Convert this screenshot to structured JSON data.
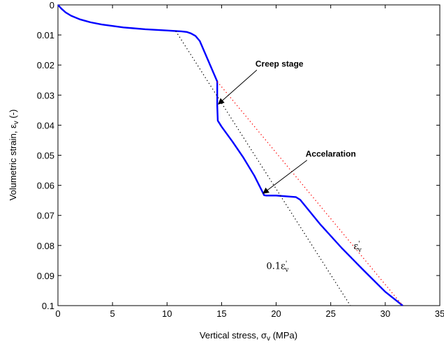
{
  "chart_data": {
    "type": "line",
    "title": "",
    "xlabel": "Vertical stress, σ",
    "xlabel_sub": "v",
    "xlabel_unit": " (MPa)",
    "ylabel": "Volumetric strain, ε",
    "ylabel_sub": "v",
    "ylabel_unit": " (-)",
    "xlim": [
      0,
      35
    ],
    "ylim": [
      0,
      0.1
    ],
    "y_reversed": true,
    "grid": false,
    "xticks": [
      0,
      5,
      10,
      15,
      20,
      25,
      30,
      35
    ],
    "xtick_labels": [
      "0",
      "5",
      "10",
      "15",
      "20",
      "25",
      "30",
      "35"
    ],
    "yticks": [
      0,
      0.01,
      0.02,
      0.03,
      0.04,
      0.05,
      0.06,
      0.07,
      0.08,
      0.09,
      0.1
    ],
    "ytick_labels": [
      "0",
      "0.01",
      "0.02",
      "0.03",
      "0.04",
      "0.05",
      "0.06",
      "0.07",
      "0.08",
      "0.09",
      "0.1"
    ],
    "series": [
      {
        "style": "solid",
        "color": "#0000ff",
        "x": [
          0,
          0.3,
          0.7,
          1.2,
          2,
          3,
          4,
          5,
          6,
          7,
          8,
          9,
          10,
          10.8,
          11.3,
          11.8,
          12.2,
          12.6,
          13,
          14.6,
          14.6,
          14.65,
          15,
          16,
          17,
          18,
          18.9,
          19.1,
          20,
          21.8,
          22.2,
          24,
          26,
          28,
          30,
          31.6
        ],
        "y": [
          0,
          0.0012,
          0.0025,
          0.0036,
          0.0048,
          0.0058,
          0.0065,
          0.007,
          0.0075,
          0.0078,
          0.0081,
          0.0083,
          0.0085,
          0.0087,
          0.0088,
          0.009,
          0.0095,
          0.0103,
          0.012,
          0.0255,
          0.0335,
          0.0385,
          0.0405,
          0.0455,
          0.0508,
          0.0568,
          0.0633,
          0.0634,
          0.0634,
          0.0639,
          0.0648,
          0.0728,
          0.0808,
          0.0882,
          0.0954,
          0.1
        ]
      },
      {
        "style": "dotted",
        "color": "#000000",
        "x": [
          10.8,
          26.8
        ],
        "y": [
          0.0087,
          0.1
        ]
      },
      {
        "style": "dotted",
        "color": "#ff0000",
        "x": [
          14.6,
          31.6
        ],
        "y": [
          0.0255,
          0.1
        ]
      }
    ],
    "annotations": [
      {
        "text": "Creep stage",
        "x": 18.1,
        "y": 0.0205,
        "arrow_to": [
          14.7,
          0.033
        ]
      },
      {
        "text": "Accelaration",
        "x": 22.7,
        "y": 0.0505,
        "arrow_to": [
          18.8,
          0.0627
        ]
      },
      {
        "text": "ε",
        "sub": "v",
        "sup": "'",
        "x": 27.1,
        "y": 0.0812
      },
      {
        "text": "0.1ε",
        "sub": "v",
        "sup": "'",
        "x": 19.1,
        "y": 0.0878
      }
    ]
  }
}
